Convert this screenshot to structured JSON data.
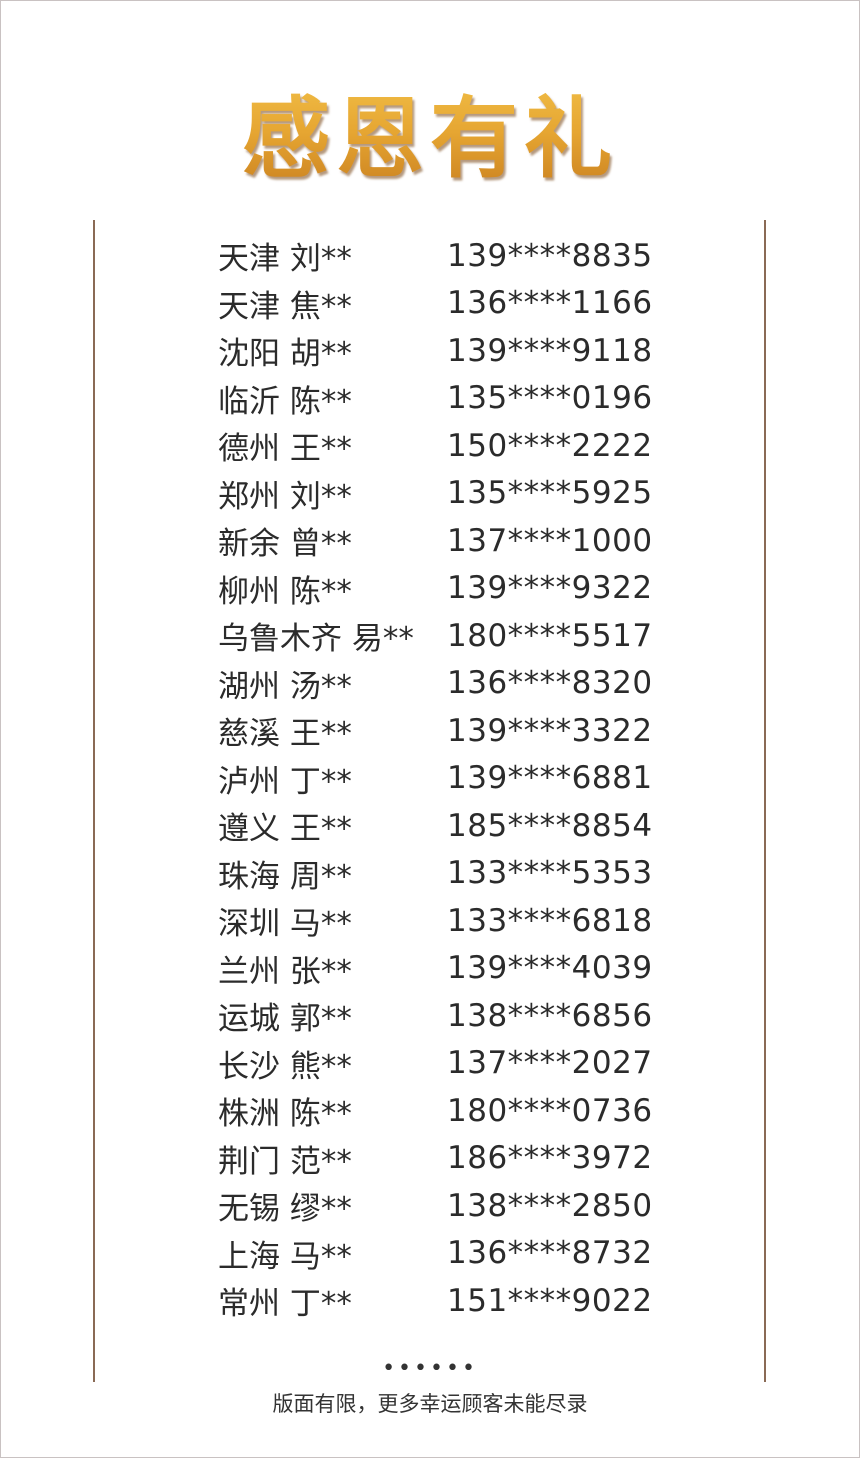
{
  "title": "感恩有礼",
  "colors": {
    "title_gold": "#e6a632",
    "divider": "#8a6a55",
    "text": "#2b2b2b"
  },
  "winners": [
    {
      "name": "天津 刘**",
      "phone": "139****8835"
    },
    {
      "name": "天津 焦**",
      "phone": "136****1166"
    },
    {
      "name": "沈阳 胡**",
      "phone": "139****9118"
    },
    {
      "name": "临沂 陈**",
      "phone": "135****0196"
    },
    {
      "name": "德州 王**",
      "phone": "150****2222"
    },
    {
      "name": "郑州 刘**",
      "phone": "135****5925"
    },
    {
      "name": "新余 曾**",
      "phone": "137****1000"
    },
    {
      "name": "柳州 陈**",
      "phone": "139****9322"
    },
    {
      "name": "乌鲁木齐 易**",
      "phone": "180****5517"
    },
    {
      "name": "湖州 汤**",
      "phone": "136****8320"
    },
    {
      "name": "慈溪 王**",
      "phone": "139****3322"
    },
    {
      "name": "泸州 丁**",
      "phone": "139****6881"
    },
    {
      "name": "遵义 王**",
      "phone": "185****8854"
    },
    {
      "name": "珠海 周**",
      "phone": "133****5353"
    },
    {
      "name": "深圳 马**",
      "phone": "133****6818"
    },
    {
      "name": "兰州 张**",
      "phone": "139****4039"
    },
    {
      "name": "运城 郭**",
      "phone": "138****6856"
    },
    {
      "name": "长沙 熊**",
      "phone": "137****2027"
    },
    {
      "name": "株洲 陈**",
      "phone": "180****0736"
    },
    {
      "name": "荆门 范**",
      "phone": "186****3972"
    },
    {
      "name": "无锡 缪**",
      "phone": "138****2850"
    },
    {
      "name": "上海 马**",
      "phone": "136****8732"
    },
    {
      "name": "常州 丁**",
      "phone": "151****9022"
    }
  ],
  "footer": {
    "dots": "••••••",
    "note": "版面有限，更多幸运顾客未能尽录"
  }
}
